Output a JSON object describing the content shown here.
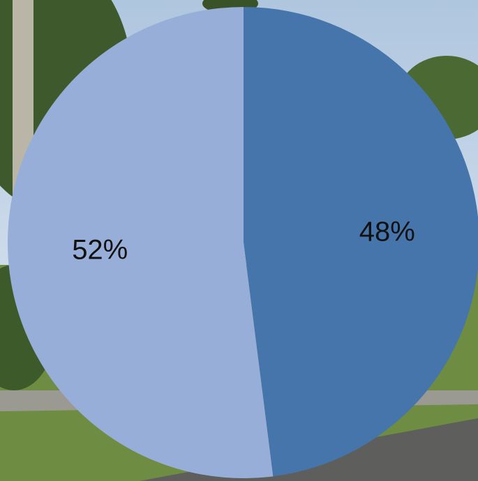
{
  "chart_data": {
    "type": "pie",
    "slices": [
      {
        "label": "48%",
        "value": 48,
        "color": "#4675AC"
      },
      {
        "label": "52%",
        "value": 52,
        "color": "#97AED8"
      }
    ]
  },
  "background": {
    "description_colors": {
      "sky": "#C9D8EA",
      "foliage": "#3F5A2E",
      "grass": "#6E8B3D",
      "road": "#5C5C5C"
    }
  }
}
